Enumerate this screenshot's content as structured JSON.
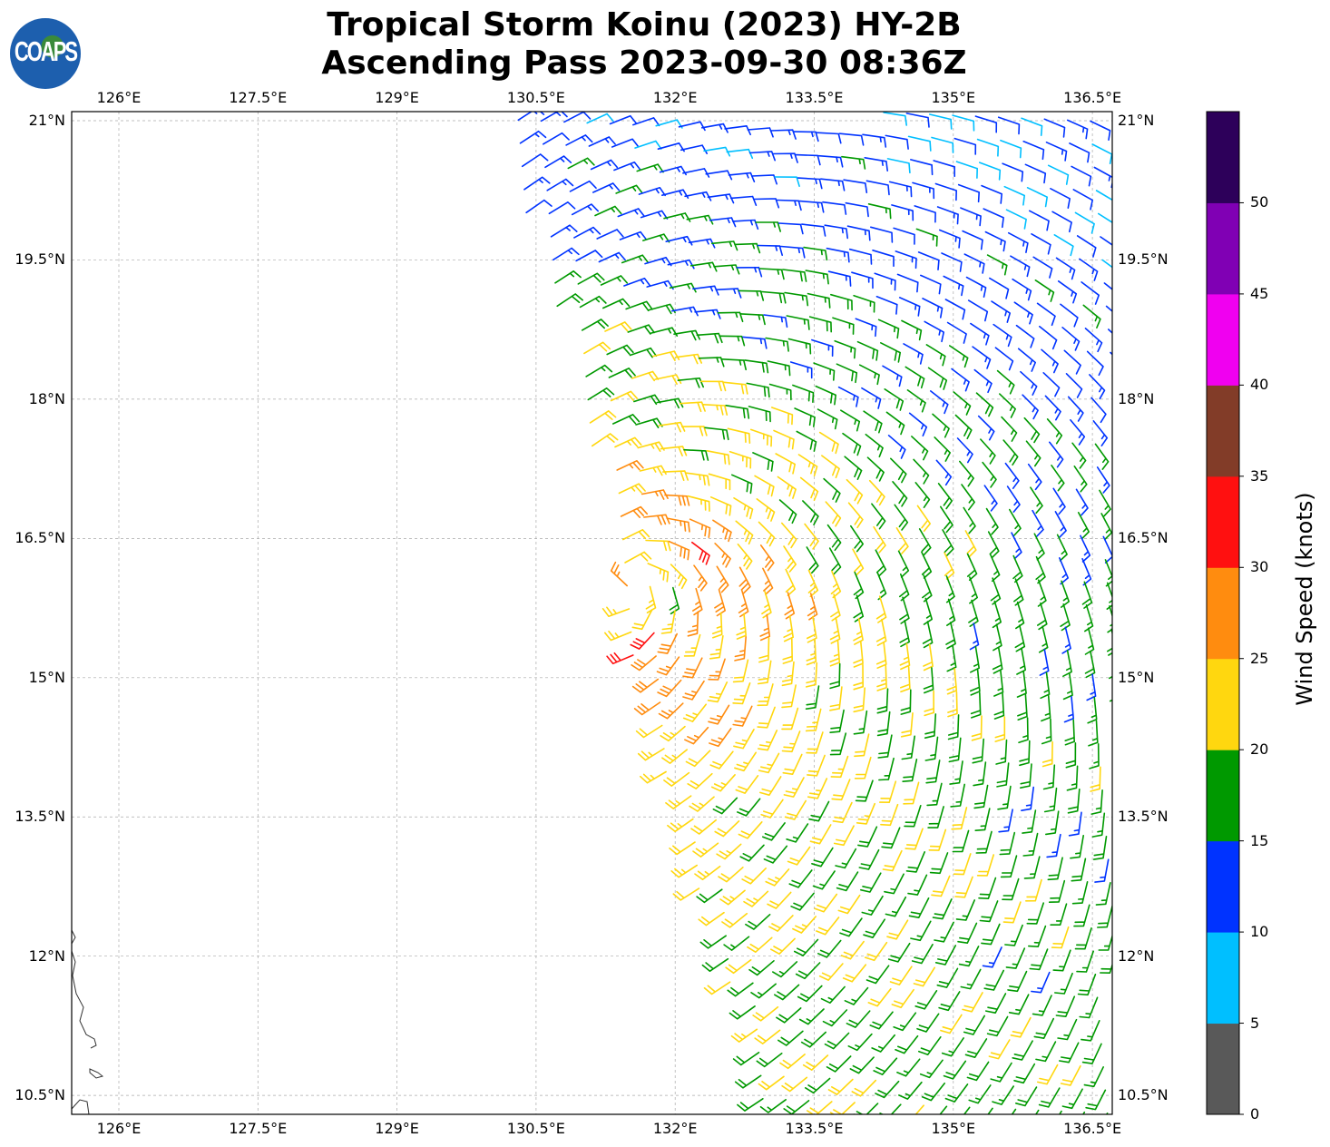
{
  "title": {
    "line1": "Tropical Storm Koinu (2023) HY-2B",
    "line2": "Ascending Pass 2023-09-30 08:36Z"
  },
  "logo": {
    "text": "COAPS"
  },
  "chart_data": {
    "type": "map-wind-barbs",
    "title": "Tropical Storm Koinu (2023) HY-2B Ascending Pass 2023-09-30 08:36Z",
    "lon_ticks": [
      126,
      127.5,
      129,
      130.5,
      132,
      133.5,
      135,
      136.5
    ],
    "lon_labels": [
      "126°E",
      "127.5°E",
      "129°E",
      "130.5°E",
      "132°E",
      "133.5°E",
      "135°E",
      "136.5°E"
    ],
    "lat_ticks": [
      21,
      19.5,
      18,
      16.5,
      15,
      13.5,
      12,
      10.5
    ],
    "lat_labels": [
      "21°N",
      "19.5°N",
      "18°N",
      "16.5°N",
      "15°N",
      "13.5°N",
      "12°N",
      "10.5°N"
    ],
    "xlim": [
      125.5,
      136.7
    ],
    "ylim": [
      10.3,
      21.1
    ],
    "grid": true,
    "storm_center": {
      "lon": 131.5,
      "lat": 16.0
    },
    "colorbar": {
      "label": "Wind Speed (knots)",
      "ticks": [
        0,
        5,
        10,
        15,
        20,
        25,
        30,
        35,
        40,
        45,
        50
      ],
      "range": [
        0,
        55
      ],
      "colors": [
        "#595959",
        "#00BFFF",
        "#0033FF",
        "#009900",
        "#FFD70F",
        "#FF8C0F",
        "#FF1010",
        "#823C28",
        "#F000F0",
        "#8000B4",
        "#2D005A"
      ]
    }
  }
}
